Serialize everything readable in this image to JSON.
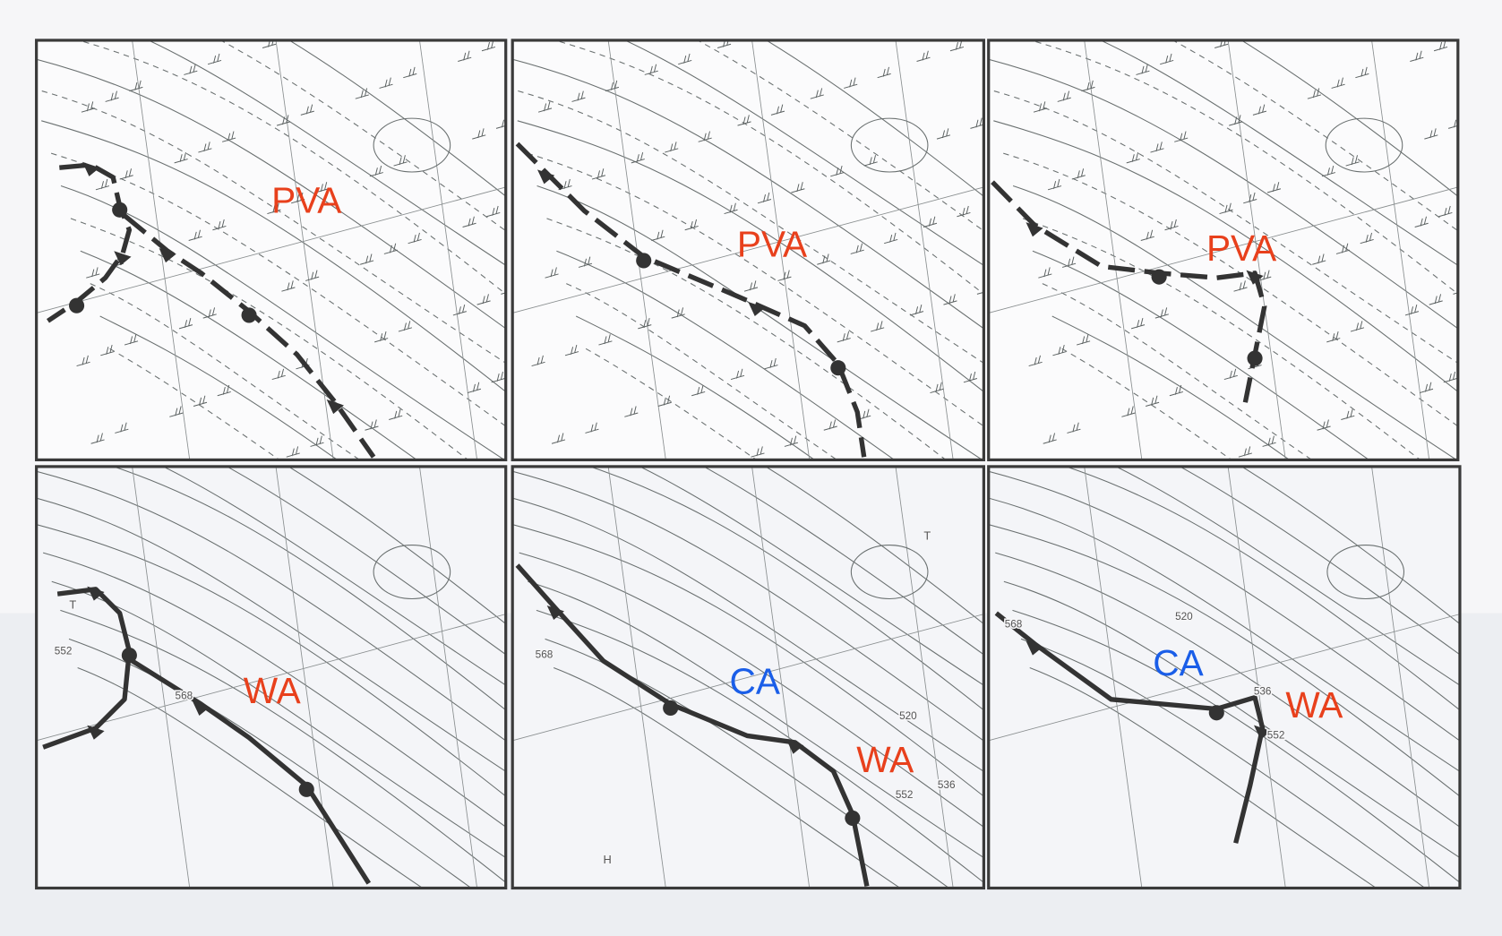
{
  "panels": [
    {
      "labels": [
        {
          "text": "PVA",
          "color": "#e8401c"
        }
      ]
    },
    {
      "labels": [
        {
          "text": "PVA",
          "color": "#e8401c"
        }
      ]
    },
    {
      "labels": [
        {
          "text": "PVA",
          "color": "#e8401c"
        }
      ]
    },
    {
      "labels": [
        {
          "text": "WA",
          "color": "#e8401c"
        },
        {
          "text": "T",
          "color": "#555555"
        },
        {
          "text": "552",
          "color": "#555555"
        },
        {
          "text": "568",
          "color": "#555555"
        }
      ]
    },
    {
      "labels": [
        {
          "text": "CA",
          "color": "#1a5ee8"
        },
        {
          "text": "WA",
          "color": "#e8401c"
        },
        {
          "text": "568",
          "color": "#555555"
        },
        {
          "text": "520",
          "color": "#555555"
        },
        {
          "text": "536",
          "color": "#555555"
        },
        {
          "text": "552",
          "color": "#555555"
        },
        {
          "text": "H",
          "color": "#555555"
        },
        {
          "text": "T",
          "color": "#555555"
        }
      ]
    },
    {
      "labels": [
        {
          "text": "CA",
          "color": "#1a5ee8"
        },
        {
          "text": "WA",
          "color": "#e8401c"
        },
        {
          "text": "568",
          "color": "#555555"
        },
        {
          "text": "520",
          "color": "#555555"
        },
        {
          "text": "536",
          "color": "#555555"
        },
        {
          "text": "552",
          "color": "#555555"
        }
      ]
    }
  ]
}
